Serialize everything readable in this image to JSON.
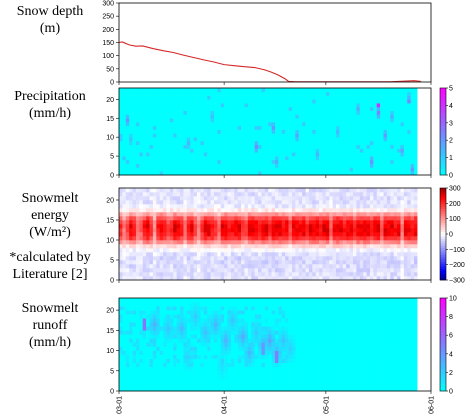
{
  "row_labels": [
    {
      "lines": [
        "Snow depth",
        "(m)"
      ]
    },
    {
      "lines": [
        "Precipitation",
        "(mm/h)"
      ]
    },
    {
      "lines": [
        "Snowmelt",
        "energy",
        "(W/m²)",
        "",
        "*calculated by",
        "Literature [2]"
      ]
    },
    {
      "lines": [
        "Snowmelt",
        "runoff",
        "(mm/h)"
      ]
    }
  ],
  "x_ticks": [
    "03-01",
    "04-01",
    "05-01",
    "06-01"
  ],
  "chart_data": [
    {
      "type": "line",
      "title": "",
      "xlabel": "",
      "ylabel": "Snow depth (m)",
      "ylim": [
        0,
        300
      ],
      "yticks": [
        0,
        50,
        100,
        150,
        200,
        250,
        300
      ],
      "x_unit": "days since 03-01 (axis dates 03-01..06-01)",
      "grid": false,
      "series": [
        {
          "color": "#d62728",
          "x": [
            0,
            1,
            3,
            5,
            7,
            10,
            13,
            16,
            19,
            22,
            25,
            28,
            31,
            34,
            37,
            40,
            43,
            45,
            47,
            49,
            50,
            52,
            55,
            60,
            70,
            80,
            84,
            87,
            89
          ],
          "y": [
            150,
            152,
            141,
            136,
            137,
            127,
            119,
            112,
            102,
            93,
            84,
            76,
            66,
            62,
            58,
            55,
            46,
            37,
            26,
            12,
            2,
            1,
            1,
            1,
            1,
            1,
            3,
            5,
            2
          ]
        }
      ]
    },
    {
      "type": "heatmap",
      "ylabel": "Precipitation (mm/h)",
      "ylim": [
        0,
        23
      ],
      "yticks": [
        0,
        5,
        10,
        15,
        20
      ],
      "colorbar": {
        "ticks": [
          0,
          1,
          2,
          3,
          4,
          5
        ],
        "range": [
          0,
          5
        ],
        "colormap": "cool"
      },
      "background_value": 0,
      "data_days": 88,
      "events": [
        [
          2,
          14,
          2.0
        ],
        [
          3,
          9,
          1.2
        ],
        [
          20,
          8,
          1.5
        ],
        [
          27,
          15,
          1.3
        ],
        [
          40,
          7,
          2.2
        ],
        [
          45,
          12,
          2.0
        ],
        [
          46,
          3,
          1.6
        ],
        [
          52,
          10,
          1.8
        ],
        [
          58,
          5,
          1.5
        ],
        [
          64,
          11,
          1.4
        ],
        [
          70,
          17,
          1.6
        ],
        [
          74,
          3,
          2.2
        ],
        [
          76,
          16,
          2.5
        ],
        [
          78,
          10,
          2.0
        ],
        [
          80,
          15,
          1.6
        ],
        [
          83,
          6,
          1.8
        ],
        [
          85,
          20,
          1.5
        ],
        [
          86,
          1,
          2.0
        ]
      ],
      "hot_spots": [
        [
          76,
          18,
          4.0
        ],
        [
          85,
          19,
          2.5
        ]
      ]
    },
    {
      "type": "heatmap",
      "ylabel": "Snowmelt energy (W/m²)",
      "ylim": [
        0,
        23
      ],
      "yticks": [
        0,
        5,
        10,
        15,
        20
      ],
      "colorbar": {
        "ticks": [
          -300,
          -200,
          -100,
          0,
          100,
          200,
          300
        ],
        "range": [
          -300,
          300
        ],
        "colormap": "bwr"
      },
      "data_days": 88,
      "hour_profile": [
        -30,
        -30,
        -35,
        -35,
        -40,
        -40,
        -30,
        -10,
        40,
        120,
        200,
        240,
        250,
        250,
        230,
        180,
        100,
        20,
        -20,
        -30,
        -30,
        -30,
        -30,
        -30
      ],
      "day_scale": [
        0.8,
        0.5,
        0.7,
        1.0,
        0.9,
        0.5,
        0.6,
        0.9,
        1.0,
        0.8,
        0.4,
        0.9,
        1.0,
        0.9,
        0.7,
        0.8,
        1.0,
        1.0,
        0.9,
        0.6,
        0.9,
        1.0,
        0.7,
        0.5,
        0.8,
        1.0,
        1.0,
        0.9,
        0.8,
        0.6,
        1.0,
        1.0,
        0.9,
        0.9,
        1.0,
        1.0,
        0.8,
        0.7,
        1.0,
        1.0,
        1.0,
        0.9,
        1.0,
        1.0,
        0.8,
        1.0,
        1.0,
        1.0,
        0.9,
        1.0,
        0.7,
        1.0,
        1.0,
        1.0,
        1.0,
        0.8,
        1.0,
        1.0,
        1.0,
        0.9,
        1.0,
        1.0,
        0.6,
        1.0,
        1.0,
        1.0,
        0.9,
        1.0,
        1.0,
        0.8,
        1.0,
        1.0,
        1.0,
        1.0,
        0.9,
        1.0,
        1.0,
        0.7,
        1.0,
        1.0,
        1.0,
        0.9,
        1.0,
        0.5,
        1.0,
        1.0,
        0.9,
        1.0
      ]
    },
    {
      "type": "heatmap",
      "ylabel": "Snowmelt runoff (mm/h)",
      "ylim": [
        0,
        23
      ],
      "yticks": [
        0,
        5,
        10,
        15,
        20
      ],
      "colorbar": {
        "ticks": [
          0,
          2,
          4,
          6,
          8,
          10
        ],
        "range": [
          0,
          10
        ],
        "colormap": "cool"
      },
      "background_value": 0,
      "data_days": 88,
      "events": [
        [
          10,
          16,
          3.0
        ],
        [
          14,
          15,
          2.2
        ],
        [
          18,
          15,
          2.6
        ],
        [
          22,
          18,
          2.0
        ],
        [
          25,
          14,
          2.4
        ],
        [
          28,
          16,
          2.8
        ],
        [
          31,
          12,
          3.0
        ],
        [
          33,
          17,
          2.2
        ],
        [
          36,
          13,
          3.2
        ],
        [
          38,
          9,
          2.8
        ],
        [
          40,
          14,
          2.0
        ],
        [
          42,
          11,
          3.0
        ],
        [
          44,
          12,
          3.5
        ],
        [
          46,
          9,
          3.0
        ],
        [
          48,
          12,
          2.4
        ],
        [
          20,
          8,
          1.5
        ],
        [
          30,
          6,
          1.2
        ],
        [
          50,
          10,
          1.8
        ]
      ],
      "hot_spots": [
        [
          7,
          16,
          5.5
        ],
        [
          46,
          8,
          5.0
        ],
        [
          42,
          10,
          4.0
        ]
      ]
    }
  ]
}
